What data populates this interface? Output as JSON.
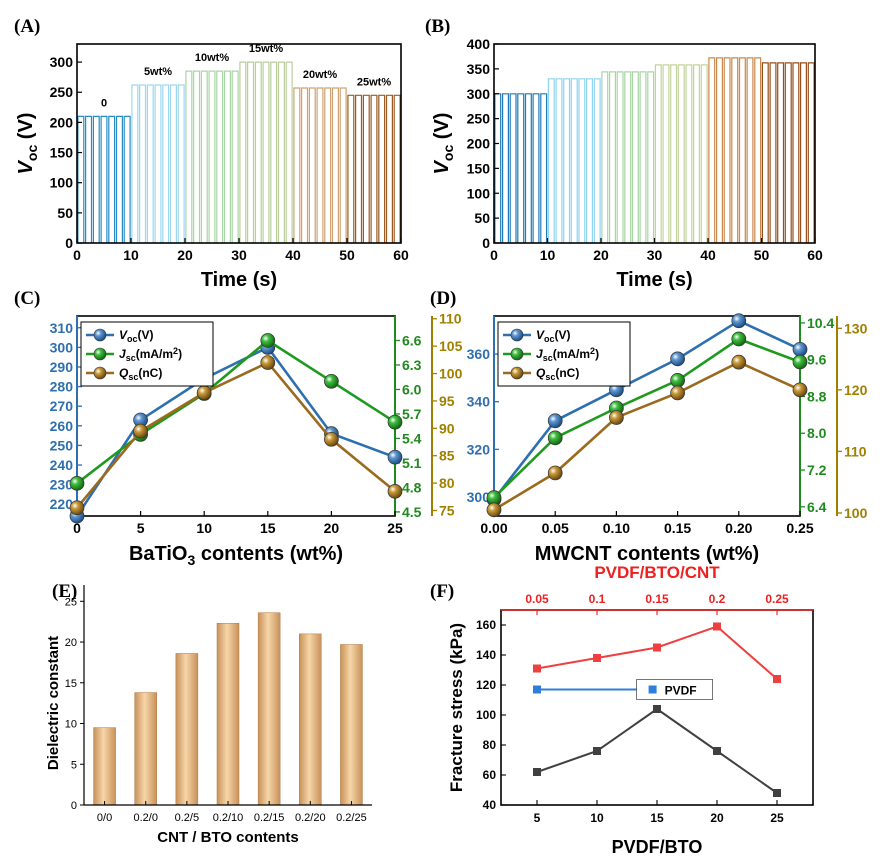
{
  "chart_data": [
    {
      "panel": "(A)",
      "type": "line",
      "xlabel": "Time (s)",
      "ylabel_main": "V",
      "ylabel_sub": "oc",
      "ylabel_unit": " (V)",
      "xlim": [
        0,
        60
      ],
      "ylim": [
        0,
        330
      ],
      "xticks": [
        0,
        10,
        20,
        30,
        40,
        50,
        60
      ],
      "yticks": [
        0,
        50,
        100,
        150,
        200,
        250,
        300
      ],
      "segments": [
        {
          "label": "0",
          "start": 0,
          "end": 10,
          "peak": 210,
          "color": "#2a8cc4"
        },
        {
          "label": "5wt%",
          "start": 10,
          "end": 20,
          "peak": 262,
          "color": "#9dd7ee"
        },
        {
          "label": "10wt%",
          "start": 20,
          "end": 30,
          "peak": 285,
          "color": "#a8d6a4"
        },
        {
          "label": "15wt%",
          "start": 30,
          "end": 40,
          "peak": 300,
          "color": "#b9cf9c"
        },
        {
          "label": "20wt%",
          "start": 40,
          "end": 50,
          "peak": 257,
          "color": "#cfa272"
        },
        {
          "label": "25wt%",
          "start": 50,
          "end": 60,
          "peak": 245,
          "color": "#9b5a24"
        }
      ]
    },
    {
      "panel": "(B)",
      "type": "line",
      "xlabel": "Time (s)",
      "ylabel_main": "V",
      "ylabel_sub": "oc",
      "ylabel_unit": " (V)",
      "xlim": [
        0,
        60
      ],
      "ylim": [
        0,
        400
      ],
      "xticks": [
        0,
        10,
        20,
        30,
        40,
        50,
        60
      ],
      "yticks": [
        0,
        50,
        100,
        150,
        200,
        250,
        300,
        350,
        400
      ],
      "segments": [
        {
          "start": 0,
          "end": 10,
          "peak": 300,
          "color": "#1f7bb5"
        },
        {
          "start": 10,
          "end": 20,
          "peak": 330,
          "color": "#8fd3ef"
        },
        {
          "start": 20,
          "end": 30,
          "peak": 344,
          "color": "#a8d6a4"
        },
        {
          "start": 30,
          "end": 40,
          "peak": 358,
          "color": "#c3d49b"
        },
        {
          "start": 40,
          "end": 50,
          "peak": 372,
          "color": "#c98a4c"
        },
        {
          "start": 50,
          "end": 60,
          "peak": 362,
          "color": "#94501c"
        }
      ]
    },
    {
      "panel": "(C)",
      "type": "line",
      "xlabel_main": "BaTiO",
      "xlabel_sub": "3",
      "xlabel_tail": " contents (wt%)",
      "x": [
        0,
        5,
        10,
        15,
        20,
        25
      ],
      "xlim": [
        0,
        25
      ],
      "xticks": [
        0,
        5,
        10,
        15,
        20,
        25
      ],
      "axes": [
        {
          "ylim": [
            214,
            316
          ],
          "ticks": [
            "220",
            "230",
            "240",
            "250",
            "260",
            "270",
            "280",
            "290",
            "300",
            "310"
          ],
          "color": "#2e6fb0"
        },
        {
          "ylim": [
            4.45,
            6.9
          ],
          "ticks": [
            "4.5",
            "4.8",
            "5.1",
            "5.4",
            "5.7",
            "6.0",
            "6.3",
            "6.6"
          ],
          "color": "#1f8a1f"
        },
        {
          "ylim": [
            74,
            110.5
          ],
          "ticks": [
            "75",
            "80",
            "85",
            "90",
            "95",
            "100",
            "105",
            "110"
          ],
          "color": "#a08000"
        }
      ],
      "series": [
        {
          "name": "Voc(V)",
          "main": "V",
          "sub": "oc",
          "unit": "(V)",
          "axis": 0,
          "values": [
            213,
            263,
            284,
            300,
            256,
            244
          ],
          "color": "#2e6fb0"
        },
        {
          "name": "Jsc(mA/m2)",
          "main": "J",
          "sub": "sc",
          "unit": "(mA/m",
          "unit_sup": "2",
          "unit_end": ")",
          "axis": 1,
          "values": [
            4.85,
            5.45,
            5.95,
            6.6,
            6.1,
            5.6
          ],
          "color": "#1e9a1e"
        },
        {
          "name": "Qsc(nC)",
          "main": "Q",
          "sub": "sc",
          "unit": "(nC)",
          "axis": 2,
          "values": [
            75.5,
            89.5,
            96.5,
            102,
            88,
            78.5
          ],
          "color": "#9a6a1e"
        }
      ]
    },
    {
      "panel": "(D)",
      "type": "line",
      "xlabel": "MWCNT contents (wt%)",
      "x": [
        0.0,
        0.05,
        0.1,
        0.15,
        0.2,
        0.25
      ],
      "xlim": [
        0,
        0.25
      ],
      "xticks": [
        "0.00",
        "0.05",
        "0.10",
        "0.15",
        "0.20",
        "0.25"
      ],
      "axes": [
        {
          "ylim": [
            292,
            376
          ],
          "ticks": [
            "300",
            "320",
            "340",
            "360"
          ],
          "color": "#2e6fb0"
        },
        {
          "ylim": [
            6.2,
            10.55
          ],
          "ticks": [
            "6.4",
            "7.2",
            "8.0",
            "8.8",
            "9.6",
            "10.4"
          ],
          "color": "#1f8a1f"
        },
        {
          "ylim": [
            99.5,
            132
          ],
          "ticks": [
            "100",
            "110",
            "120",
            "130"
          ],
          "color": "#a08000"
        }
      ],
      "series": [
        {
          "name": "Voc(V)",
          "main": "V",
          "sub": "oc",
          "unit": "(V)",
          "axis": 0,
          "values": [
            299,
            332,
            345,
            358,
            374,
            362
          ],
          "color": "#2e6fb0"
        },
        {
          "name": "Jsc(mA/m2)",
          "main": "J",
          "sub": "sc",
          "unit": "(mA/m",
          "unit_sup": "2",
          "unit_end": ")",
          "axis": 1,
          "values": [
            6.6,
            7.9,
            8.55,
            9.15,
            10.05,
            9.55
          ],
          "color": "#1e9a1e"
        },
        {
          "name": "Qsc(nC)",
          "main": "Q",
          "sub": "sc",
          "unit": "(nC)",
          "axis": 2,
          "values": [
            100.5,
            106.5,
            115.5,
            119.5,
            124.5,
            120
          ],
          "color": "#9a6a1e"
        }
      ]
    },
    {
      "panel": "(E)",
      "type": "bar",
      "xlabel": "CNT / BTO contents",
      "ylabel": "Dielectric constant",
      "categories": [
        "0/0",
        "0.2/0",
        "0.2/5",
        "0.2/10",
        "0.2/15",
        "0.2/20",
        "0.2/25"
      ],
      "values": [
        9.5,
        13.8,
        18.6,
        22.3,
        23.6,
        21.0,
        19.7
      ],
      "ylim": [
        0,
        27
      ],
      "yticks": [
        0,
        5,
        10,
        15,
        20,
        25
      ],
      "bar_color": "#e8b77f"
    },
    {
      "panel": "(F)",
      "type": "line",
      "xlabel": "PVDF/BTO",
      "top_xlabel": "PVDF/BTO/CNT",
      "ylabel": "Fracture stress (kPa)",
      "xlim": [
        2,
        28
      ],
      "ylim": [
        40,
        170
      ],
      "xticks": [
        5,
        10,
        15,
        20,
        25
      ],
      "top_xticks": [
        "0.05",
        "0.1",
        "0.15",
        "0.2",
        "0.25"
      ],
      "yticks": [
        40,
        60,
        80,
        100,
        120,
        140,
        160
      ],
      "legend": "PVDF",
      "series": [
        {
          "name": "PVDF/BTO",
          "x": [
            5,
            10,
            15,
            20,
            25
          ],
          "values": [
            62,
            76,
            104,
            76,
            48
          ],
          "color": "#404040"
        },
        {
          "name": "PVDF/BTO/CNT",
          "x": [
            5,
            10,
            15,
            20,
            25
          ],
          "values": [
            131,
            138,
            145,
            159,
            124
          ],
          "color": "#ee4040"
        },
        {
          "name": "PVDF",
          "x": [
            5,
            13.3
          ],
          "values": [
            117,
            117
          ],
          "color": "#2f7fd9"
        }
      ]
    }
  ]
}
